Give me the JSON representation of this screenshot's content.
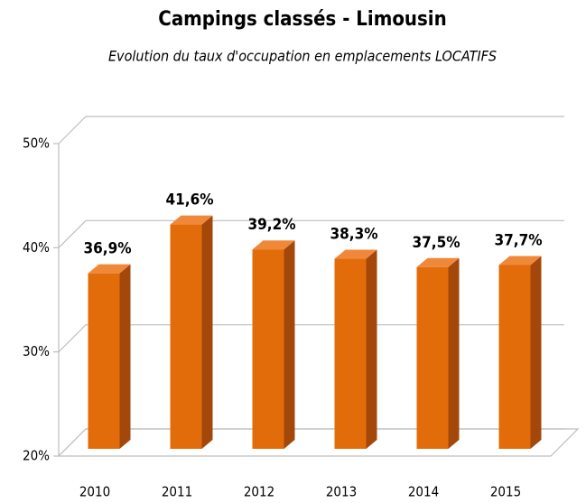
{
  "chart_data": {
    "type": "bar",
    "title": "Campings classés - Limousin",
    "subtitle": "Evolution du taux d'occupation en emplacements LOCATIFS",
    "categories": [
      "2010",
      "2011",
      "2012",
      "2013",
      "2014",
      "2015"
    ],
    "values": [
      36.9,
      41.6,
      39.2,
      38.3,
      37.5,
      37.7
    ],
    "value_labels": [
      "36,9%",
      "41,6%",
      "39,2%",
      "38,3%",
      "37,5%",
      "37,7%"
    ],
    "color": "#e36c0a",
    "ylim": [
      20,
      50
    ],
    "yticks": [
      {
        "value": 20,
        "label": "20%"
      },
      {
        "value": 30,
        "label": "30%"
      },
      {
        "value": 40,
        "label": "40%"
      },
      {
        "value": 50,
        "label": "50%"
      }
    ],
    "grid": true
  }
}
